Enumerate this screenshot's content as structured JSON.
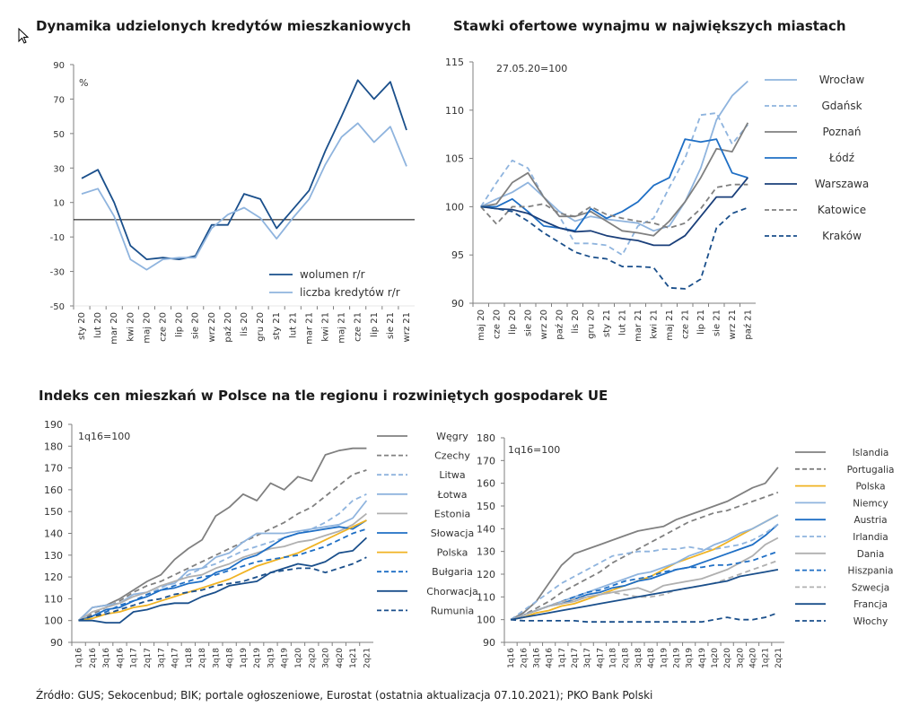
{
  "source_note": "Źródło: GUS; Sekocenbud; BIK; portale ogłoszeniowe, Eurostat (ostatnia aktualizacja 07.10.2021); PKO Bank Polski",
  "section_title": "Indeks cen mieszkań w Polsce na tle regionu i rozwiniętych gospodarek UE",
  "chart_data": [
    {
      "type": "line",
      "title": "Dynamika udzielonych kredytów mieszkaniowych",
      "unit_label": "%",
      "ylim": [
        -50,
        90
      ],
      "yticks": [
        90,
        70,
        50,
        30,
        10,
        -10,
        -30,
        -50
      ],
      "categories": [
        "sty 20",
        "lut 20",
        "mar 20",
        "kwi 20",
        "maj 20",
        "cze 20",
        "lip 20",
        "sie 20",
        "wrz 20",
        "paź 20",
        "lis 20",
        "gru 20",
        "sty 21",
        "lut 21",
        "mar 21",
        "kwi 21",
        "maj 21",
        "cze 21",
        "lip 21",
        "sie 21",
        "wrz 21"
      ],
      "legend_position": "bottom-right",
      "series": [
        {
          "name": "wolumen r/r",
          "color": "#1a4f8b",
          "dash": "solid",
          "values": [
            24,
            29,
            10,
            -15,
            -23,
            -22,
            -23,
            -21,
            -3,
            -3,
            15,
            12,
            -5,
            6,
            17,
            40,
            60,
            81,
            70,
            80,
            52
          ]
        },
        {
          "name": "liczba kredytów r/r",
          "color": "#8fb4de",
          "dash": "solid",
          "values": [
            15,
            18,
            2,
            -23,
            -29,
            -23,
            -22,
            -22,
            -5,
            3,
            7,
            1,
            -11,
            1,
            12,
            32,
            48,
            56,
            45,
            54,
            31
          ]
        }
      ]
    },
    {
      "type": "line",
      "title": "Stawki ofertowe wynajmu w największych miastach",
      "annotation": "27.05.20=100",
      "ylim": [
        90,
        115
      ],
      "yticks": [
        115,
        110,
        105,
        100,
        95,
        90
      ],
      "categories": [
        "maj 20",
        "cze 20",
        "lip 20",
        "sie 20",
        "wrz 20",
        "paź 20",
        "lis 20",
        "gru 20",
        "sty 21",
        "lut 21",
        "mar 21",
        "kwi 21",
        "maj 21",
        "cze 21",
        "lip 21",
        "sie 21",
        "wrz 21",
        "paź 21"
      ],
      "legend_position": "right",
      "series": [
        {
          "name": "Wrocław",
          "color": "#8fb4de",
          "dash": "solid",
          "values": [
            100,
            100.8,
            101.5,
            102.5,
            101.0,
            99.5,
            98.5,
            99.0,
            98.7,
            98.5,
            98.3,
            97.5,
            98.0,
            100.5,
            104.0,
            109.0,
            111.5,
            113.0
          ]
        },
        {
          "name": "Gdańsk",
          "color": "#8fb4de",
          "dash": "dash",
          "values": [
            100,
            102.5,
            104.8,
            104.0,
            101.0,
            99.0,
            96.2,
            96.2,
            96.0,
            95.0,
            98.0,
            98.8,
            102.0,
            105.0,
            109.5,
            109.7,
            106.5,
            108.5
          ]
        },
        {
          "name": "Poznań",
          "color": "#808080",
          "dash": "solid",
          "values": [
            100,
            100.3,
            102.5,
            103.5,
            101.0,
            99.0,
            99.0,
            99.5,
            98.5,
            97.5,
            97.3,
            97.0,
            98.5,
            100.5,
            103.0,
            106.0,
            105.7,
            108.7
          ]
        },
        {
          "name": "Łódź",
          "color": "#1f6fc5",
          "dash": "solid",
          "values": [
            100,
            100.0,
            100.8,
            99.5,
            98.0,
            97.8,
            97.5,
            99.8,
            98.8,
            99.5,
            100.5,
            102.2,
            103.0,
            107.0,
            106.7,
            107.0,
            103.5,
            103.0
          ]
        },
        {
          "name": "Warszawa",
          "color": "#1a3f7a",
          "dash": "solid",
          "values": [
            100,
            99.8,
            99.7,
            99.3,
            98.5,
            97.8,
            97.4,
            97.5,
            97.0,
            96.7,
            96.5,
            96.0,
            96.0,
            97.0,
            99.0,
            101.0,
            101.0,
            103.0
          ]
        },
        {
          "name": "Katowice",
          "color": "#808080",
          "dash": "dash",
          "values": [
            100,
            98.2,
            100.0,
            100.0,
            100.3,
            99.3,
            99.0,
            100.0,
            99.2,
            98.8,
            98.5,
            98.3,
            97.8,
            98.3,
            99.8,
            102.0,
            102.3,
            102.3
          ]
        },
        {
          "name": "Kraków",
          "color": "#1a4f8b",
          "dash": "dash",
          "values": [
            100,
            99.8,
            99.5,
            98.5,
            97.3,
            96.3,
            95.3,
            94.8,
            94.6,
            93.8,
            93.8,
            93.7,
            91.6,
            91.5,
            92.5,
            97.8,
            99.3,
            99.9
          ]
        }
      ]
    },
    {
      "type": "line",
      "title": "",
      "annotation": "1q16=100",
      "ylim": [
        90,
        190
      ],
      "yticks": [
        190,
        180,
        170,
        160,
        150,
        140,
        130,
        120,
        110,
        100,
        90
      ],
      "categories": [
        "1q16",
        "2q16",
        "3q16",
        "4q16",
        "1q17",
        "2q17",
        "3q17",
        "4q17",
        "1q18",
        "2q18",
        "3q18",
        "4q18",
        "1q19",
        "2q19",
        "3q19",
        "4q19",
        "1q20",
        "2q20",
        "3q20",
        "4q20",
        "1q21",
        "2q21"
      ],
      "legend_position": "right",
      "series": [
        {
          "name": "Węgry",
          "color": "#808080",
          "dash": "solid",
          "values": [
            100,
            106,
            107,
            110,
            114,
            118,
            121,
            128,
            133,
            137,
            148,
            152,
            158,
            155,
            163,
            160,
            166,
            164,
            176,
            178,
            179,
            179
          ]
        },
        {
          "name": "Czechy",
          "color": "#808080",
          "dash": "dash",
          "values": [
            100,
            103,
            106,
            109,
            113,
            116,
            118,
            121,
            124,
            127,
            130,
            133,
            136,
            139,
            142,
            145,
            149,
            152,
            157,
            162,
            167,
            169
          ]
        },
        {
          "name": "Litwa",
          "color": "#8fb4de",
          "dash": "dash",
          "values": [
            100,
            102,
            104,
            107,
            109,
            112,
            115,
            118,
            121,
            124,
            126,
            129,
            132,
            134,
            136,
            138,
            140,
            142,
            145,
            149,
            155,
            158
          ]
        },
        {
          "name": "Łotwa",
          "color": "#8fb4de",
          "dash": "solid",
          "values": [
            100,
            106,
            107,
            108,
            112,
            113,
            116,
            117,
            123,
            124,
            129,
            131,
            136,
            140,
            140,
            140,
            141,
            142,
            143,
            144,
            147,
            155
          ]
        },
        {
          "name": "Estonia",
          "color": "#b0b0b0",
          "dash": "solid",
          "values": [
            100,
            104,
            106,
            108,
            111,
            113,
            116,
            118,
            120,
            121,
            124,
            126,
            129,
            131,
            133,
            134,
            136,
            137,
            139,
            141,
            144,
            149
          ]
        },
        {
          "name": "Słowacja",
          "color": "#1f6fc5",
          "dash": "solid",
          "values": [
            100,
            102,
            105,
            106,
            109,
            111,
            114,
            115,
            117,
            118,
            122,
            124,
            128,
            130,
            134,
            138,
            140,
            141,
            142,
            143,
            142,
            146
          ]
        },
        {
          "name": "Polska",
          "color": "#f0b323",
          "dash": "solid",
          "values": [
            100,
            101,
            103,
            104,
            106,
            107,
            109,
            111,
            113,
            115,
            117,
            119,
            122,
            125,
            127,
            129,
            131,
            134,
            137,
            140,
            143,
            146
          ]
        },
        {
          "name": "Bułgaria",
          "color": "#1f6fc5",
          "dash": "dash",
          "values": [
            100,
            102,
            104,
            107,
            109,
            112,
            114,
            116,
            118,
            120,
            121,
            123,
            125,
            127,
            128,
            129,
            130,
            132,
            134,
            137,
            140,
            142
          ]
        },
        {
          "name": "Chorwacja",
          "color": "#1a4f8b",
          "dash": "solid",
          "values": [
            100,
            100,
            99,
            99,
            104,
            105,
            107,
            108,
            108,
            111,
            113,
            116,
            117,
            118,
            122,
            124,
            126,
            125,
            127,
            131,
            132,
            138
          ]
        },
        {
          "name": "Rumunia",
          "color": "#1a4f8b",
          "dash": "dash",
          "values": [
            100,
            102,
            103,
            105,
            107,
            109,
            110,
            112,
            113,
            114,
            116,
            117,
            118,
            120,
            122,
            123,
            124,
            124,
            122,
            124,
            126,
            129
          ]
        }
      ]
    },
    {
      "type": "line",
      "title": "",
      "annotation": "1q16=100",
      "ylim": [
        90,
        180
      ],
      "yticks": [
        180,
        170,
        160,
        150,
        140,
        130,
        120,
        110,
        100,
        90
      ],
      "categories": [
        "1q16",
        "2q16",
        "3q16",
        "4q16",
        "1q17",
        "2q17",
        "3q17",
        "4q17",
        "1q18",
        "2q18",
        "3q18",
        "4q18",
        "1q19",
        "2q19",
        "3q19",
        "4q19",
        "1q20",
        "2q20",
        "3q20",
        "4q20",
        "1q21",
        "2q21"
      ],
      "legend_position": "right",
      "series": [
        {
          "name": "Islandia",
          "color": "#808080",
          "dash": "solid",
          "values": [
            100,
            103,
            108,
            116,
            124,
            129,
            131,
            133,
            135,
            137,
            139,
            140,
            141,
            144,
            146,
            148,
            150,
            152,
            155,
            158,
            160,
            167
          ]
        },
        {
          "name": "Portugalia",
          "color": "#808080",
          "dash": "dash",
          "values": [
            100,
            102,
            105,
            108,
            112,
            115,
            118,
            121,
            125,
            128,
            131,
            134,
            137,
            140,
            143,
            145,
            147,
            148,
            150,
            152,
            154,
            156
          ]
        },
        {
          "name": "Polska",
          "color": "#f0b323",
          "dash": "solid",
          "values": [
            100,
            101,
            103,
            104,
            106,
            107,
            109,
            111,
            113,
            115,
            117,
            119,
            122,
            125,
            127,
            129,
            131,
            134,
            137,
            140,
            143,
            146
          ]
        },
        {
          "name": "Niemcy",
          "color": "#8fb4de",
          "dash": "solid",
          "values": [
            100,
            102,
            104,
            106,
            108,
            110,
            112,
            114,
            116,
            118,
            120,
            121,
            123,
            125,
            128,
            130,
            133,
            135,
            138,
            140,
            143,
            146
          ]
        },
        {
          "name": "Austria",
          "color": "#1f6fc5",
          "dash": "solid",
          "values": [
            100,
            102,
            104,
            106,
            107,
            109,
            111,
            112,
            114,
            115,
            117,
            118,
            120,
            122,
            123,
            125,
            127,
            129,
            131,
            133,
            137,
            142
          ]
        },
        {
          "name": "Irlandia",
          "color": "#8fb4de",
          "dash": "dash",
          "values": [
            100,
            104,
            108,
            112,
            116,
            119,
            122,
            125,
            128,
            129,
            130,
            130,
            131,
            131,
            132,
            131,
            131,
            132,
            133,
            135,
            138,
            142
          ]
        },
        {
          "name": "Dania",
          "color": "#b0b0b0",
          "dash": "solid",
          "values": [
            100,
            102,
            104,
            106,
            107,
            108,
            110,
            111,
            112,
            113,
            114,
            112,
            115,
            116,
            117,
            118,
            120,
            122,
            125,
            128,
            133,
            136
          ]
        },
        {
          "name": "Hiszpania",
          "color": "#1f6fc5",
          "dash": "dash",
          "values": [
            100,
            102,
            104,
            106,
            108,
            110,
            112,
            113,
            115,
            117,
            118,
            119,
            121,
            122,
            123,
            123,
            124,
            124,
            125,
            126,
            128,
            130
          ]
        },
        {
          "name": "Szwecja",
          "color": "#b0b0b0",
          "dash": "dash",
          "values": [
            100,
            102,
            104,
            106,
            108,
            109,
            110,
            111,
            112,
            111,
            110,
            110,
            111,
            113,
            114,
            115,
            116,
            118,
            120,
            122,
            124,
            126
          ]
        },
        {
          "name": "Francja",
          "color": "#1a4f8b",
          "dash": "solid",
          "values": [
            100,
            101,
            102,
            103,
            104,
            105,
            106,
            107,
            108,
            109,
            110,
            111,
            112,
            113,
            114,
            115,
            116,
            117,
            119,
            120,
            121,
            122
          ]
        },
        {
          "name": "Włochy",
          "color": "#1a4f8b",
          "dash": "dash",
          "values": [
            100,
            99.5,
            99.5,
            99.5,
            99.5,
            99.5,
            99,
            99,
            99,
            99,
            99,
            99,
            99,
            99,
            99,
            99,
            100,
            101,
            100,
            100,
            101,
            103
          ]
        }
      ]
    }
  ]
}
